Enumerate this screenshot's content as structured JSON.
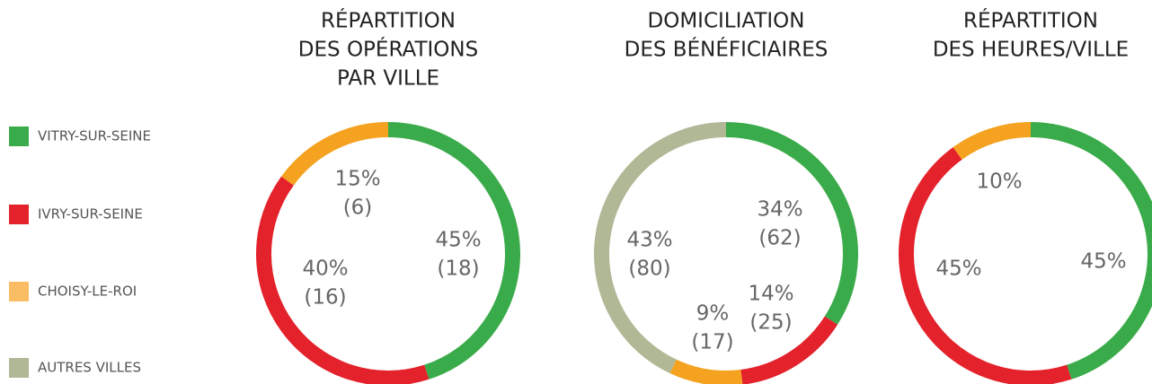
{
  "legend": [
    {
      "name": "VITRY-SUR-SEINE",
      "color": "#3aab4a"
    },
    {
      "name": "IVRY-SUR-SEINE",
      "color": "#e3222b"
    },
    {
      "name": "CHOISY-LE-ROI",
      "color": "#fbbd63"
    },
    {
      "name": "AUTRES VILLES",
      "color": "#b0b896"
    }
  ],
  "chart_data": [
    {
      "type": "donut",
      "title": [
        "RÉPARTITION",
        "DES OPÉRATIONS",
        "PAR VILLE"
      ],
      "colors": [
        "#3aab4a",
        "#e3222b",
        "#f4a21f",
        "#b0b896"
      ],
      "values": [
        45,
        40,
        15,
        null
      ],
      "value_labels": [
        "45%",
        "40%",
        "15%",
        null
      ],
      "counts": [
        18,
        16,
        6,
        null
      ],
      "count_labels": [
        "(18)",
        "(16)",
        "(6)",
        null
      ]
    },
    {
      "type": "donut",
      "title": [
        "DOMICILIATION",
        "DES BÉNÉFICIAIRES"
      ],
      "colors": [
        "#3aab4a",
        "#e3222b",
        "#f4a21f",
        "#b0b896"
      ],
      "values": [
        34,
        14,
        9,
        43
      ],
      "value_labels": [
        "34%",
        "14%",
        "9%",
        "43%"
      ],
      "counts": [
        62,
        25,
        17,
        80
      ],
      "count_labels": [
        "(62)",
        "(25)",
        "(17)",
        "(80)"
      ]
    },
    {
      "type": "donut",
      "title": [
        "RÉPARTITION",
        "DES HEURES/VILLE"
      ],
      "colors": [
        "#3aab4a",
        "#e3222b",
        "#f4a21f",
        "#b0b896"
      ],
      "values": [
        45,
        45,
        10,
        null
      ],
      "value_labels": [
        "45%",
        "45%",
        "10%",
        null
      ]
    }
  ]
}
